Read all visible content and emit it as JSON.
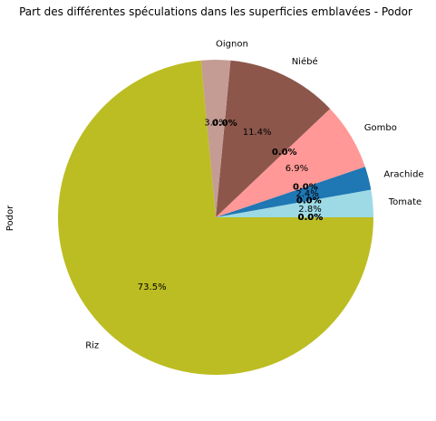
{
  "chart_data": {
    "type": "pie",
    "title": "Part des différentes spéculations dans les superficies emblavées - Podor",
    "ylabel": "Podor",
    "start_angle_deg": 0,
    "direction": "counterclockwise",
    "legend": "none",
    "slices": [
      {
        "label": "Tomate",
        "value": 2.8,
        "pct_label": "2.8%",
        "color": "#9edae5"
      },
      {
        "label": "Arachide",
        "value": 2.4,
        "pct_label": "2.4%",
        "color": "#1f77b4"
      },
      {
        "label": "Gombo",
        "value": 6.9,
        "pct_label": "6.9%",
        "color": "#ff9896"
      },
      {
        "label": "Niébé",
        "value": 11.4,
        "pct_label": "11.4%",
        "color": "#8c564b"
      },
      {
        "label": "Oignon",
        "value": 3.0,
        "pct_label": "3.0%",
        "color": "#c49c94"
      },
      {
        "label": "Riz",
        "value": 73.5,
        "pct_label": "73.5%",
        "color": "#bcbd22"
      }
    ],
    "zero_labels": [
      {
        "text": "0.0%",
        "near": "Tomate"
      },
      {
        "text": "0.0%",
        "near": "Tomate"
      },
      {
        "text": "0.0%",
        "near": "Arachide"
      },
      {
        "text": "0.0%",
        "near": "Arachide"
      },
      {
        "text": "0.0%",
        "near": "Gombo"
      },
      {
        "text": "0.0%",
        "near": "Niébé"
      },
      {
        "text": "0.0%",
        "near": "Oignon"
      }
    ]
  }
}
